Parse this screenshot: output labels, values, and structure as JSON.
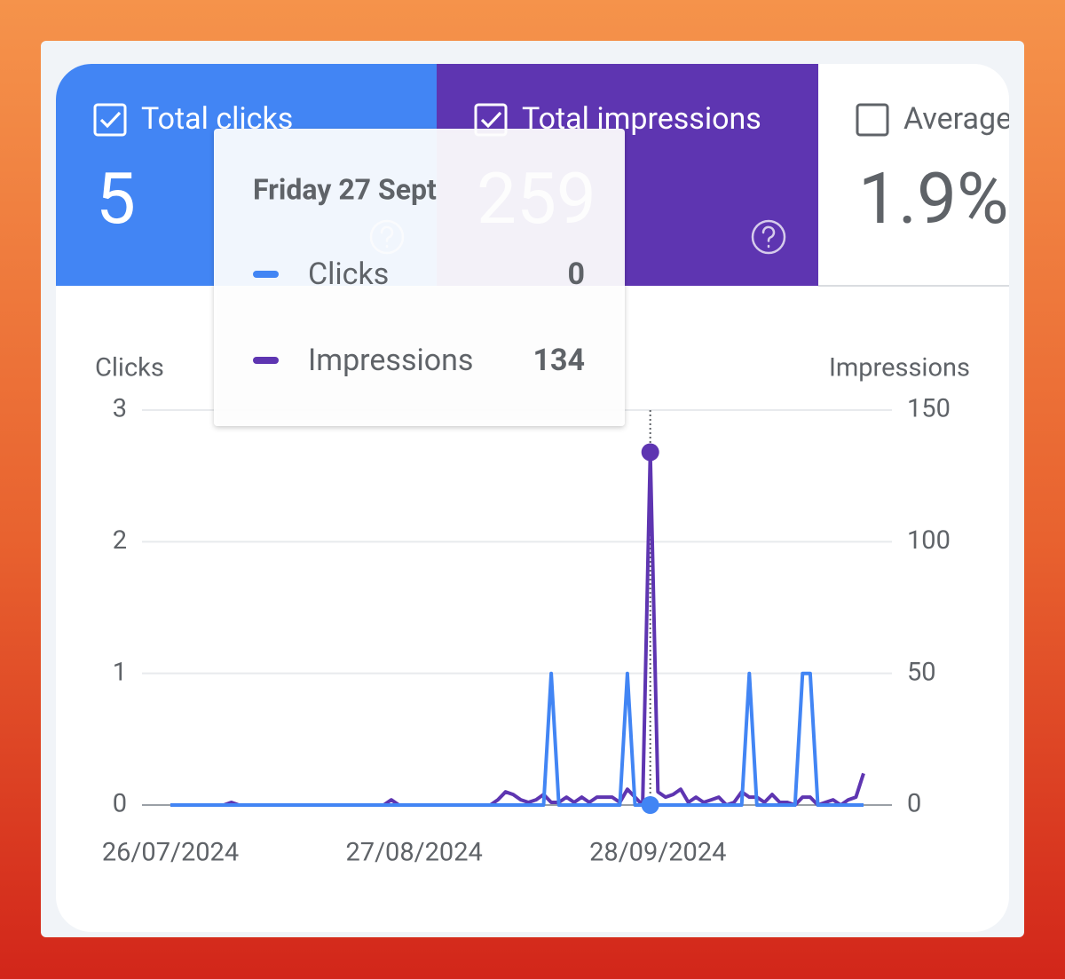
{
  "cards": [
    {
      "label": "Total clicks",
      "value": "5",
      "checked": true,
      "color": "#4285f4"
    },
    {
      "label": "Total impressions",
      "value": "259",
      "checked": true,
      "color": "#5e35b1"
    },
    {
      "label": "Average",
      "value": "1.9%",
      "checked": false,
      "color": "#ffffff"
    }
  ],
  "tooltip": {
    "title": "Friday 27 Sept",
    "rows": [
      {
        "label": "Clicks",
        "value": "0"
      },
      {
        "label": "Impressions",
        "value": "134"
      }
    ]
  },
  "chart_data": {
    "type": "line",
    "ylabel": "Clicks",
    "y2label": "Impressions",
    "categories": [
      "26/07/2024",
      null,
      null,
      null,
      null,
      null,
      null,
      null,
      null,
      null,
      null,
      null,
      null,
      null,
      null,
      null,
      null,
      null,
      null,
      null,
      null,
      null,
      null,
      null,
      null,
      null,
      null,
      null,
      null,
      null,
      null,
      null,
      "27/08/2024",
      null,
      null,
      null,
      null,
      null,
      null,
      null,
      null,
      null,
      null,
      null,
      null,
      null,
      null,
      null,
      null,
      null,
      null,
      null,
      null,
      null,
      null,
      null,
      null,
      null,
      null,
      null,
      null,
      null,
      null,
      null,
      "28/09/2024",
      null,
      null,
      null,
      null,
      null,
      null,
      null,
      null,
      null,
      null,
      null,
      null,
      null,
      null,
      null,
      null,
      null,
      null,
      null,
      null,
      null,
      null,
      null,
      null,
      null,
      null,
      null
    ],
    "series": [
      {
        "name": "Clicks",
        "color": "#4285f4",
        "values": [
          0,
          0,
          0,
          0,
          0,
          0,
          0,
          0,
          0,
          0,
          0,
          0,
          0,
          0,
          0,
          0,
          0,
          0,
          0,
          0,
          0,
          0,
          0,
          0,
          0,
          0,
          0,
          0,
          0,
          0,
          0,
          0,
          0,
          0,
          0,
          0,
          0,
          0,
          0,
          0,
          0,
          0,
          0,
          0,
          0,
          0,
          0,
          0,
          0,
          0,
          1,
          0,
          0,
          0,
          0,
          0,
          0,
          0,
          0,
          0,
          1,
          0,
          0,
          0,
          0,
          0,
          0,
          0,
          0,
          0,
          0,
          0,
          0,
          0,
          0,
          0,
          1,
          0,
          0,
          0,
          0,
          0,
          0,
          1,
          1,
          0,
          0,
          0,
          0,
          0,
          0,
          0
        ]
      },
      {
        "name": "Impressions",
        "color": "#5e35b1",
        "axis": "y2",
        "values": [
          0,
          0,
          0,
          0,
          0,
          0,
          0,
          0,
          1,
          0,
          0,
          0,
          0,
          0,
          0,
          0,
          0,
          0,
          0,
          0,
          0,
          0,
          0,
          0,
          0,
          0,
          0,
          0,
          0,
          2,
          0,
          0,
          0,
          0,
          0,
          0,
          0,
          0,
          0,
          0,
          0,
          0,
          0,
          2,
          5,
          4,
          2,
          1,
          2,
          4,
          1,
          1,
          3,
          1,
          3,
          1,
          3,
          3,
          3,
          1,
          6,
          3,
          0,
          134,
          5,
          3,
          4,
          6,
          1,
          3,
          1,
          2,
          3,
          0,
          1,
          5,
          3,
          3,
          1,
          4,
          1,
          1,
          0,
          3,
          3,
          0,
          1,
          2,
          0,
          2,
          3,
          12
        ]
      }
    ],
    "ylim": [
      0,
      3
    ],
    "yticks": [
      0,
      1,
      2,
      3
    ],
    "y2lim": [
      0,
      150
    ],
    "y2ticks": [
      0,
      50,
      100,
      150
    ],
    "grid": true,
    "highlight": 63
  }
}
